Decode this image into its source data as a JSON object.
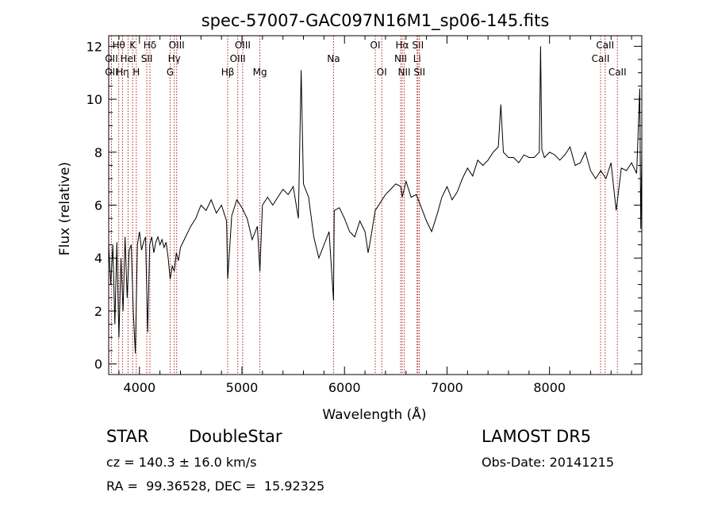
{
  "chart_data": {
    "type": "line",
    "title": "spec-57007-GAC097N16M1_sp06-145.fits",
    "xlabel": "Wavelength (Å)",
    "ylabel": "Flux (relative)",
    "xlim": [
      3700,
      8900
    ],
    "ylim": [
      -0.4,
      12.4
    ],
    "xticks": [
      4000,
      5000,
      6000,
      7000,
      8000
    ],
    "yticks": [
      0,
      2,
      4,
      6,
      8,
      10,
      12
    ],
    "xtick_labels": [
      "4000",
      "5000",
      "6000",
      "7000",
      "8000"
    ],
    "ytick_labels": [
      "0",
      "2",
      "4",
      "6",
      "8",
      "10",
      "12"
    ],
    "grid": false,
    "series": [
      {
        "x": [
          3700,
          3720,
          3740,
          3760,
          3780,
          3800,
          3820,
          3840,
          3860,
          3880,
          3900,
          3920,
          3940,
          3960,
          3980,
          4000,
          4020,
          4040,
          4060,
          4080,
          4100,
          4120,
          4140,
          4160,
          4180,
          4200,
          4220,
          4240,
          4260,
          4280,
          4300,
          4320,
          4340,
          4360,
          4380,
          4400,
          4450,
          4500,
          4550,
          4600,
          4650,
          4700,
          4750,
          4800,
          4850,
          4861,
          4900,
          4950,
          5000,
          5050,
          5100,
          5150,
          5175,
          5200,
          5250,
          5300,
          5350,
          5400,
          5450,
          5500,
          5550,
          5577,
          5600,
          5650,
          5700,
          5750,
          5800,
          5850,
          5893,
          5900,
          5950,
          6000,
          6050,
          6100,
          6150,
          6200,
          6230,
          6250,
          6300,
          6350,
          6400,
          6450,
          6500,
          6550,
          6563,
          6600,
          6650,
          6700,
          6750,
          6800,
          6850,
          6900,
          6950,
          7000,
          7050,
          7100,
          7150,
          7200,
          7250,
          7300,
          7350,
          7400,
          7450,
          7500,
          7525,
          7550,
          7600,
          7650,
          7700,
          7750,
          7800,
          7850,
          7900,
          7913,
          7925,
          7950,
          8000,
          8050,
          8100,
          8150,
          8200,
          8250,
          8300,
          8350,
          8400,
          8450,
          8500,
          8550,
          8600,
          8650,
          8700,
          8750,
          8800,
          8850,
          8880,
          8890,
          8900
        ],
        "y": [
          4.5,
          3.0,
          4.5,
          1.5,
          4.6,
          1.0,
          4.0,
          2.0,
          4.8,
          2.5,
          4.3,
          4.5,
          2.0,
          0.4,
          4.5,
          5.0,
          4.3,
          4.6,
          4.8,
          1.2,
          4.5,
          4.8,
          4.2,
          4.6,
          4.8,
          4.5,
          4.7,
          4.4,
          4.6,
          4.0,
          3.2,
          3.7,
          3.5,
          4.2,
          3.9,
          4.4,
          4.8,
          5.2,
          5.5,
          6.0,
          5.8,
          6.2,
          5.7,
          6.0,
          5.4,
          3.2,
          5.6,
          6.2,
          5.9,
          5.5,
          4.7,
          5.2,
          3.5,
          6.0,
          6.3,
          6.0,
          6.3,
          6.6,
          6.4,
          6.7,
          5.5,
          11.1,
          6.8,
          6.3,
          4.8,
          4.0,
          4.5,
          5.0,
          2.4,
          5.8,
          5.9,
          5.5,
          5.0,
          4.8,
          5.4,
          5.0,
          4.2,
          4.6,
          5.8,
          6.1,
          6.4,
          6.6,
          6.8,
          6.7,
          6.3,
          6.9,
          6.3,
          6.4,
          5.9,
          5.4,
          5.0,
          5.6,
          6.3,
          6.7,
          6.2,
          6.5,
          7.0,
          7.4,
          7.1,
          7.7,
          7.5,
          7.7,
          8.0,
          8.2,
          9.8,
          8.0,
          7.8,
          7.8,
          7.6,
          7.9,
          7.8,
          7.8,
          8.0,
          12.0,
          8.1,
          7.8,
          8.0,
          7.9,
          7.7,
          7.9,
          8.2,
          7.5,
          7.6,
          8.0,
          7.3,
          7.0,
          7.3,
          7.0,
          7.6,
          5.8,
          7.4,
          7.3,
          7.6,
          7.2,
          10.4,
          5.1,
          8.0
        ]
      }
    ],
    "line_markers": [
      {
        "wavelength": 3727,
        "label": "OII",
        "row": 1
      },
      {
        "wavelength": 3727,
        "label": "OII",
        "row": 2
      },
      {
        "wavelength": 3798,
        "label": "Hθ",
        "row": 0
      },
      {
        "wavelength": 3835,
        "label": "Hη",
        "row": 2
      },
      {
        "wavelength": 3889,
        "label": "HeI",
        "row": 1
      },
      {
        "wavelength": 3934,
        "label": "K",
        "row": 0
      },
      {
        "wavelength": 3969,
        "label": "H",
        "row": 2
      },
      {
        "wavelength": 4072,
        "label": "SII",
        "row": 1
      },
      {
        "wavelength": 4102,
        "label": "Hδ",
        "row": 0
      },
      {
        "wavelength": 4300,
        "label": "G",
        "row": 2
      },
      {
        "wavelength": 4340,
        "label": "Hγ",
        "row": 1
      },
      {
        "wavelength": 4363,
        "label": "OIII",
        "row": 0
      },
      {
        "wavelength": 4861,
        "label": "Hβ",
        "row": 2
      },
      {
        "wavelength": 4959,
        "label": "OIII",
        "row": 1
      },
      {
        "wavelength": 5007,
        "label": "OIII",
        "row": 0
      },
      {
        "wavelength": 5175,
        "label": "Mg",
        "row": 2
      },
      {
        "wavelength": 5893,
        "label": "Na",
        "row": 1
      },
      {
        "wavelength": 6300,
        "label": "OI",
        "row": 0
      },
      {
        "wavelength": 6364,
        "label": "OI",
        "row": 2
      },
      {
        "wavelength": 6548,
        "label": "NII",
        "row": 1
      },
      {
        "wavelength": 6563,
        "label": "Hα",
        "row": 0
      },
      {
        "wavelength": 6583,
        "label": "NII",
        "row": 2
      },
      {
        "wavelength": 6708,
        "label": "Li",
        "row": 1
      },
      {
        "wavelength": 6716,
        "label": "SII",
        "row": 0
      },
      {
        "wavelength": 6731,
        "label": "SII",
        "row": 2
      },
      {
        "wavelength": 8498,
        "label": "CaII",
        "row": 1
      },
      {
        "wavelength": 8542,
        "label": "CaII",
        "row": 0
      },
      {
        "wavelength": 8662,
        "label": "CaII",
        "row": 2
      }
    ],
    "colors": {
      "spectrum": "#000000",
      "markers": "#b22222",
      "axes": "#000000"
    }
  },
  "footer": {
    "class_label": "STAR",
    "subclass_label": "DoubleStar",
    "survey": "LAMOST DR5",
    "cz": "cz = 140.3 ± 16.0 km/s",
    "obs_date": "Obs-Date: 20141215",
    "coords": "RA =  99.36528, DEC =  15.92325"
  }
}
